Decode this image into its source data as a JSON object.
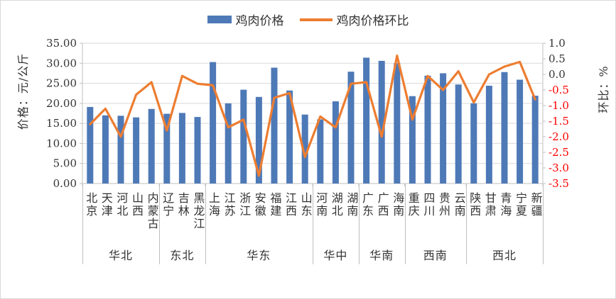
{
  "colors": {
    "bar": "#4e79b7",
    "line": "#ed7d31",
    "negative_tick": "#ff0000",
    "grid": "#d9d9d9",
    "axis": "#bfbfbf",
    "text": "#333333"
  },
  "legend": [
    {
      "label": "鸡肉价格",
      "marker": "bar-swatch"
    },
    {
      "label": "鸡肉价格环比",
      "marker": "line-swatch"
    }
  ],
  "chart_data": {
    "type": "bar+line combo",
    "categories": [
      "北京",
      "天津",
      "河北",
      "山西",
      "内蒙古",
      "辽宁",
      "吉林",
      "黑龙江",
      "上海",
      "江苏",
      "浙江",
      "安徽",
      "福建",
      "江西",
      "山东",
      "河南",
      "湖北",
      "湖南",
      "广东",
      "广西",
      "海南",
      "重庆",
      "四川",
      "贵州",
      "云南",
      "陕西",
      "甘肃",
      "青海",
      "宁夏",
      "新疆"
    ],
    "groups": [
      {
        "label": "华北",
        "count": 5
      },
      {
        "label": "东北",
        "count": 3
      },
      {
        "label": "华东",
        "count": 7
      },
      {
        "label": "华中",
        "count": 3
      },
      {
        "label": "华南",
        "count": 3
      },
      {
        "label": "西南",
        "count": 4
      },
      {
        "label": "西北",
        "count": 5
      }
    ],
    "series": [
      {
        "name": "鸡肉价格",
        "type": "bar",
        "axis": "left",
        "values": [
          19.1,
          17.0,
          16.9,
          16.5,
          18.6,
          17.4,
          17.6,
          16.6,
          30.3,
          20.0,
          23.4,
          21.6,
          28.9,
          23.2,
          17.2,
          16.0,
          20.5,
          27.9,
          31.4,
          30.6,
          30.0,
          21.8,
          26.9,
          27.5,
          24.7,
          20.0,
          24.4,
          27.8,
          25.9,
          21.9
        ]
      },
      {
        "name": "鸡肉价格环比",
        "type": "line",
        "axis": "right",
        "values": [
          -1.6,
          -1.1,
          -2.0,
          -0.65,
          -0.25,
          -1.8,
          -0.05,
          -0.3,
          -0.35,
          -1.7,
          -1.45,
          -3.25,
          -0.75,
          -0.6,
          -2.65,
          -1.35,
          -1.7,
          -0.3,
          -0.25,
          -2.0,
          0.6,
          -1.45,
          -0.05,
          -0.5,
          0.1,
          -0.9,
          0.0,
          0.25,
          0.4,
          -0.8
        ]
      }
    ],
    "left_axis": {
      "title": "价格：元/公斤",
      "min": 0,
      "max": 35,
      "step": 5,
      "tick_labels": [
        "0.00",
        "5.00",
        "10.00",
        "15.00",
        "20.00",
        "25.00",
        "30.00",
        "35.00"
      ]
    },
    "right_axis": {
      "title": "环比：%",
      "min": -3.5,
      "max": 1.0,
      "step": 0.5,
      "tick_labels": [
        "1.0",
        "0.5",
        "0.0",
        "-0.5",
        "-1.0",
        "-1.5",
        "-2.0",
        "-2.5",
        "-3.0",
        "-3.5"
      ]
    },
    "grid": "horizontal",
    "legend_position": "top-center"
  }
}
